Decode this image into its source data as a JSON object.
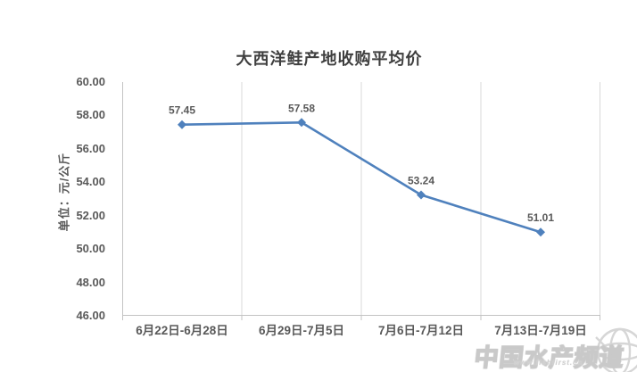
{
  "chart_data": {
    "type": "line",
    "title": "大西洋鲑产地收购平均价",
    "ylabel": "单位：元/公斤",
    "categories": [
      "6月22日-6月28日",
      "6月29日-7月5日",
      "7月6日-7月12日",
      "7月13日-7月19日"
    ],
    "series": [
      {
        "name": "大西洋鲑产地收购平均价",
        "values": [
          57.45,
          57.58,
          53.24,
          51.01
        ]
      }
    ],
    "data_labels": [
      "57.45",
      "57.58",
      "53.24",
      "51.01"
    ],
    "ylim": [
      46,
      60
    ],
    "ytick_step": 2,
    "ytick_labels": [
      "60.00",
      "58.00",
      "56.00",
      "54.00",
      "52.00",
      "50.00",
      "48.00",
      "46.00"
    ],
    "grid": "vertical category boundaries only",
    "legend_position": "none",
    "marker": "diamond"
  },
  "colors": {
    "line": "#4f81bd",
    "marker": "#4f81bd",
    "title_text": "#3f3f3f",
    "label_text": "#595959",
    "gridline": "#d9d9d9",
    "axis_line": "#c3c3c3",
    "watermark": "#c9c9c9"
  },
  "watermark": {
    "text": "中国水产频道",
    "url": "www.fishfirst.cn",
    "logo": "globe"
  }
}
